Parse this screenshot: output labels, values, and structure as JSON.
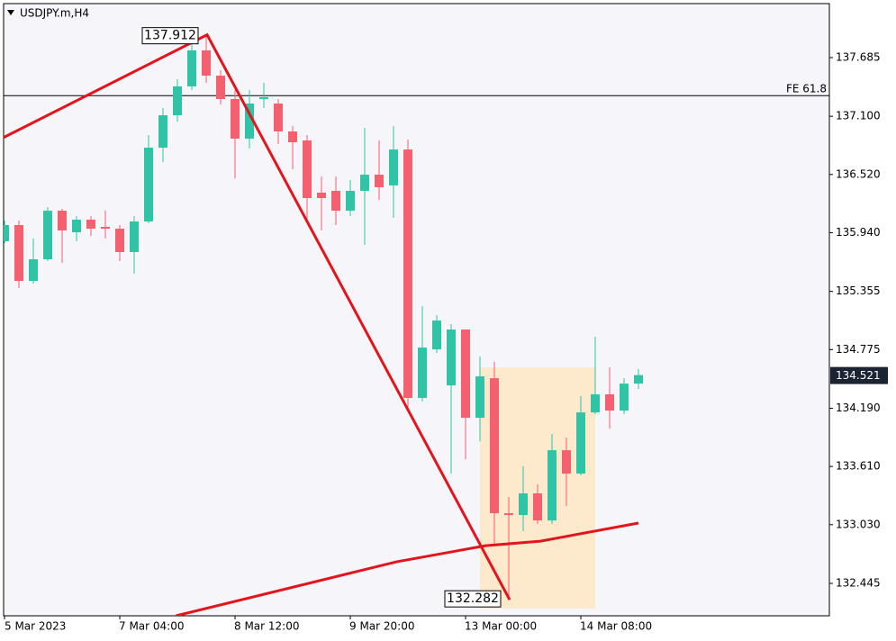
{
  "chart_data": {
    "type": "candlestick",
    "title": "USDJPY.m,H4",
    "categories": [
      "5 Mar 2023",
      null,
      null,
      null,
      null,
      null,
      null,
      null,
      "7 Mar 04:00",
      null,
      null,
      null,
      null,
      null,
      null,
      null,
      "8 Mar 12:00",
      null,
      null,
      null,
      null,
      null,
      null,
      null,
      "9 Mar 20:00",
      null,
      null,
      null,
      null,
      null,
      null,
      null,
      "13 Mar 00:00",
      null,
      null,
      null,
      null,
      null,
      null,
      null,
      "14 Mar 08:00",
      null,
      null,
      null,
      null
    ],
    "open": [
      135.854,
      136.016,
      135.459,
      135.675,
      136.159,
      135.944,
      136.07,
      135.998,
      135.98,
      135.747,
      136.052,
      136.787,
      137.11,
      137.398,
      137.757,
      137.505,
      137.272,
      136.877,
      137.272,
      137.227,
      136.949,
      136.859,
      136.339,
      136.357,
      136.159,
      136.357,
      136.518,
      136.411,
      136.769,
      134.293,
      134.777,
      134.418,
      134.975,
      134.095,
      134.49,
      133.144,
      133.126,
      133.342,
      133.072,
      133.772,
      133.539,
      134.149,
      134.329,
      134.167,
      134.436
    ],
    "high": [
      136.061,
      136.061,
      135.881,
      136.195,
      136.177,
      136.105,
      136.105,
      136.159,
      136.016,
      136.105,
      136.913,
      137.182,
      137.469,
      137.828,
      137.912,
      137.559,
      137.362,
      137.362,
      137.433,
      137.272,
      137.003,
      136.913,
      136.5,
      136.5,
      136.464,
      136.985,
      136.859,
      137.003,
      136.868,
      135.208,
      135.118,
      135.029,
      134.975,
      134.706,
      134.652,
      133.306,
      133.611,
      133.432,
      133.934,
      133.898,
      134.311,
      134.903,
      134.598,
      134.49,
      134.58
    ],
    "low": [
      135.836,
      135.388,
      135.433,
      135.657,
      135.639,
      135.854,
      135.908,
      135.881,
      135.657,
      135.531,
      136.034,
      136.644,
      137.048,
      137.362,
      137.433,
      137.218,
      136.482,
      136.778,
      137.182,
      136.823,
      136.572,
      136.052,
      135.962,
      136.016,
      136.105,
      135.818,
      136.267,
      136.088,
      134.167,
      134.257,
      134.742,
      133.539,
      133.683,
      133.862,
      132.821,
      132.282,
      132.965,
      133.037,
      133.037,
      133.216,
      133.521,
      134.131,
      133.988,
      134.131,
      134.383
    ],
    "close": [
      136.016,
      135.459,
      135.675,
      136.159,
      135.962,
      136.07,
      135.98,
      135.98,
      135.747,
      136.052,
      136.787,
      137.11,
      137.398,
      137.757,
      137.505,
      137.272,
      136.877,
      137.227,
      137.29,
      136.949,
      136.841,
      136.285,
      136.285,
      136.159,
      136.357,
      136.518,
      136.393,
      136.769,
      134.293,
      134.795,
      135.065,
      134.975,
      134.095,
      134.508,
      133.144,
      133.126,
      133.342,
      133.072,
      133.772,
      133.539,
      134.149,
      134.329,
      134.167,
      134.436,
      134.521
    ],
    "up_color": "#2ec4a5",
    "down_color": "#f4606e",
    "ylim": [
      132.122,
      138.223
    ],
    "yticks": [
      137.685,
      {
        "value": 137.1,
        "label": "137.100"
      },
      {
        "value": 136.52,
        "label": "136.520"
      },
      {
        "value": 135.94,
        "label": "135.940"
      },
      135.355,
      134.775,
      {
        "value": 134.19,
        "label": "134.190"
      },
      {
        "value": 133.61,
        "label": "133.610"
      },
      {
        "value": 133.03,
        "label": "133.030"
      },
      132.445
    ],
    "fe_level": {
      "label": "FE 61.8",
      "value": 137.306
    },
    "zigzag": {
      "start": {
        "index": -0.1,
        "price": 136.886
      },
      "peak_index": 14,
      "trough_index": 35,
      "color": "#e3141c"
    },
    "trend_line": {
      "color": "#e3141c",
      "points": [
        {
          "index": 11.9,
          "price": 132.122
        },
        {
          "index": 27.2,
          "price": 132.66
        },
        {
          "index": 33.4,
          "price": 132.821
        },
        {
          "index": 37.2,
          "price": 132.866
        },
        {
          "index": 44,
          "price": 133.046
        }
      ]
    },
    "zone": {
      "from_index": 33,
      "to_index": 41,
      "top": 134.598,
      "bottom": 132.194,
      "color": "#fde9cc"
    }
  }
}
